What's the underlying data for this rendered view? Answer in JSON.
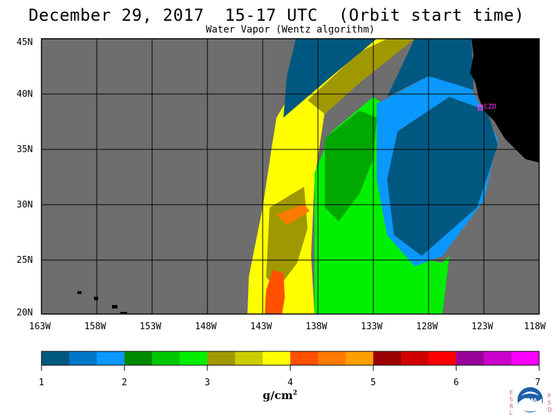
{
  "header": {
    "title": "December 29, 2017  15-17 UTC  (Orbit start time)",
    "subtitle": "Water Vapor (Wentz algorithm)"
  },
  "map": {
    "lat_labels": [
      "45N",
      "40N",
      "35N",
      "30N",
      "25N",
      "20N"
    ],
    "lon_labels": [
      "163W",
      "158W",
      "153W",
      "148W",
      "143W",
      "138W",
      "133W",
      "128W",
      "123W",
      "118W"
    ],
    "station_label": "CZD",
    "colors": {
      "no_data": "#6e6e6e",
      "land": "#000000",
      "station": "#ff30ff",
      "hot_pixels": "#ff2020"
    }
  },
  "colorbar": {
    "labels": [
      "1",
      "2",
      "3",
      "4",
      "5",
      "6",
      "7"
    ],
    "units_text": "g/cm",
    "units_sup": "2",
    "colors": [
      "#005880",
      "#0077c8",
      "#0a98ff",
      "#008800",
      "#00c800",
      "#00f000",
      "#a09800",
      "#cccc00",
      "#ffff00",
      "#ff5000",
      "#ff7a00",
      "#ffa000",
      "#9a0000",
      "#d00000",
      "#ff0000",
      "#9a009a",
      "#cc00cc",
      "#ff00ff"
    ]
  },
  "badge": {
    "left_letters": [
      "E",
      "S",
      "R",
      "L"
    ],
    "right_letters": [
      "P",
      "S",
      "D"
    ],
    "logo_text": "NOAA"
  }
}
